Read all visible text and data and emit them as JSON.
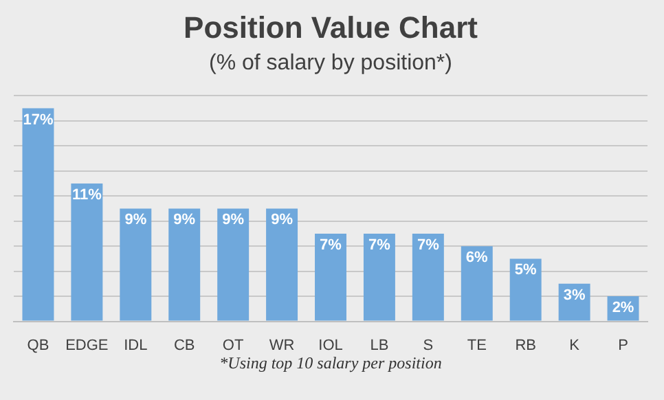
{
  "chart_data": {
    "type": "bar",
    "title": "Position Value Chart",
    "subtitle": "(% of salary by position*)",
    "categories": [
      "QB",
      "EDGE",
      "IDL",
      "CB",
      "OT",
      "WR",
      "IOL",
      "LB",
      "S",
      "TE",
      "RB",
      "K",
      "P"
    ],
    "values": [
      17,
      11,
      9,
      9,
      9,
      9,
      7,
      7,
      7,
      6,
      5,
      3,
      2
    ],
    "value_labels": [
      "17%",
      "11%",
      "9%",
      "9%",
      "9%",
      "9%",
      "7%",
      "7%",
      "7%",
      "6%",
      "5%",
      "3%",
      "2%"
    ],
    "color": "#6fa8dc",
    "ylim": [
      0,
      18
    ],
    "yticks": [
      {
        "value": 0,
        "label": null
      },
      {
        "value": 2,
        "label": null
      },
      {
        "value": 4,
        "label": null
      },
      {
        "value": 6,
        "label": null
      },
      {
        "value": 8,
        "label": null
      },
      {
        "value": 10,
        "label": null
      },
      {
        "value": 12,
        "label": null
      },
      {
        "value": 14,
        "label": null
      },
      {
        "value": 16,
        "label": null
      },
      {
        "value": 18,
        "label": null
      }
    ],
    "grid": "y",
    "tick_labels": "x",
    "legend": false,
    "annotations": [
      "*Using top 10 salary per position"
    ]
  }
}
